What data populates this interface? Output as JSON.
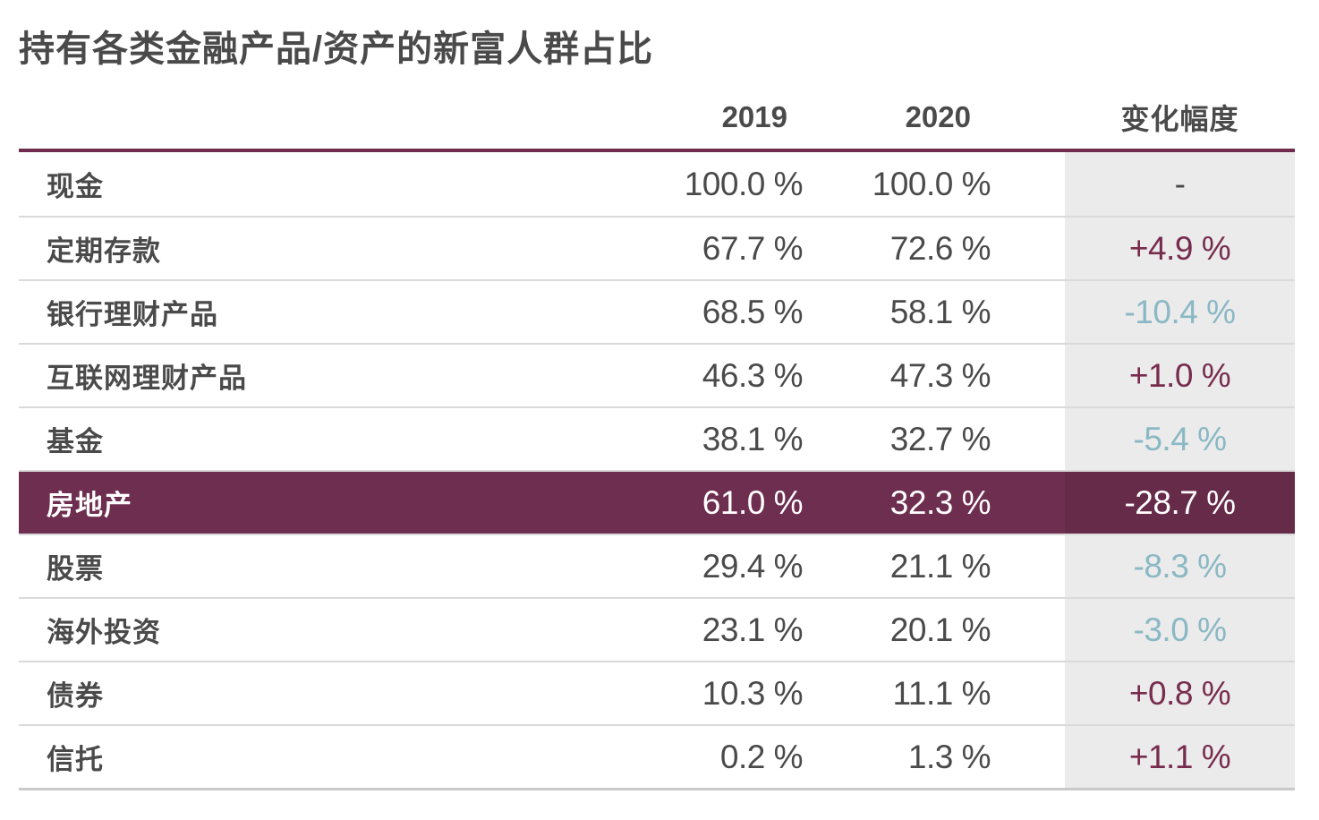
{
  "title": "持有各类金融产品/资产的新富人群占比",
  "table": {
    "columns": [
      "2019",
      "2020",
      "变化幅度"
    ],
    "rows": [
      {
        "label": "现金",
        "y2019": "100.0 %",
        "y2020": "100.0 %",
        "change": "-",
        "change_type": "neutral",
        "highlight": false
      },
      {
        "label": "定期存款",
        "y2019": "67.7 %",
        "y2020": "72.6 %",
        "change": "+4.9 %",
        "change_type": "positive",
        "highlight": false
      },
      {
        "label": "银行理财产品",
        "y2019": "68.5 %",
        "y2020": "58.1 %",
        "change": "-10.4 %",
        "change_type": "negative",
        "highlight": false
      },
      {
        "label": "互联网理财产品",
        "y2019": "46.3 %",
        "y2020": "47.3 %",
        "change": "+1.0 %",
        "change_type": "positive",
        "highlight": false
      },
      {
        "label": "基金",
        "y2019": "38.1 %",
        "y2020": "32.7 %",
        "change": "-5.4 %",
        "change_type": "negative",
        "highlight": false
      },
      {
        "label": "房地产",
        "y2019": "61.0 %",
        "y2020": "32.3 %",
        "change": "-28.7 %",
        "change_type": "negative",
        "highlight": true
      },
      {
        "label": "股票",
        "y2019": "29.4 %",
        "y2020": "21.1 %",
        "change": "-8.3 %",
        "change_type": "negative",
        "highlight": false
      },
      {
        "label": "海外投资",
        "y2019": "23.1 %",
        "y2020": "20.1 %",
        "change": "-3.0 %",
        "change_type": "negative",
        "highlight": false
      },
      {
        "label": "债券",
        "y2019": "10.3 %",
        "y2020": "11.1 %",
        "change": "+0.8 %",
        "change_type": "positive",
        "highlight": false
      },
      {
        "label": "信托",
        "y2019": "0.2 %",
        "y2020": "1.3 %",
        "change": "+1.1 %",
        "change_type": "positive",
        "highlight": false
      }
    ]
  },
  "colors": {
    "accent_maroon": "#6e2e4f",
    "highlight_change_cell": "#662b49",
    "positive_change_text": "#772c4e",
    "negative_change_text": "#8ab8c4",
    "change_column_background": "#ebebeb",
    "text_dark": "#4a4a4a",
    "row_separator": "#dadada",
    "bottom_border": "#c9c9c9"
  },
  "chart_data": {
    "type": "table",
    "title": "持有各类金融产品/资产的新富人群占比",
    "categories": [
      "现金",
      "定期存款",
      "银行理财产品",
      "互联网理财产品",
      "基金",
      "房地产",
      "股票",
      "海外投资",
      "债券",
      "信托"
    ],
    "series": [
      {
        "name": "2019",
        "values": [
          100.0,
          67.7,
          68.5,
          46.3,
          38.1,
          61.0,
          29.4,
          23.1,
          10.3,
          0.2
        ]
      },
      {
        "name": "2020",
        "values": [
          100.0,
          72.6,
          58.1,
          47.3,
          32.7,
          32.3,
          21.1,
          20.1,
          11.1,
          1.3
        ]
      },
      {
        "name": "变化幅度",
        "values": [
          null,
          4.9,
          -10.4,
          1.0,
          -5.4,
          -28.7,
          -8.3,
          -3.0,
          0.8,
          1.1
        ]
      }
    ],
    "highlighted_category": "房地产",
    "unit": "%"
  }
}
